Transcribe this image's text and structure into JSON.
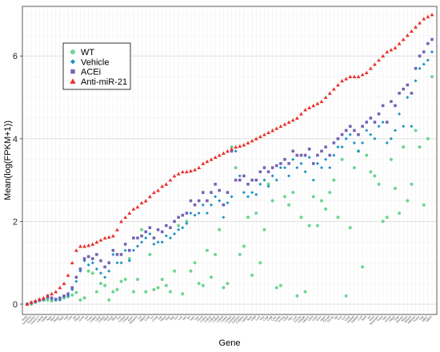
{
  "chart_data": {
    "type": "scatter",
    "xlabel": "Gene",
    "ylabel": "Mean(log(FPKM+1))",
    "ylim": [
      -0.25,
      7.2
    ],
    "y_ticks": [
      0,
      2,
      4,
      6
    ],
    "grid": true,
    "legend_position": "top-left",
    "genes": [
      "Rnd3",
      "Gm10561",
      "Tmem37",
      "Tmem177",
      "Ankrd1",
      "Cd200",
      "Nppa",
      "Myh7",
      "Pla2g7",
      "Rgs2",
      "Ctgf",
      "Ly6a",
      "Zfp",
      "Thbs1",
      "Cyr61",
      "Vim",
      "Postn",
      "Col8a1",
      "Ltbp2",
      "Col3a1",
      "Fbln2",
      "Timp1",
      "Sfrp2",
      "Fn1",
      "Col1a2",
      "Col1a1",
      "Sparc",
      "Serpinh1",
      "Lox",
      "Mfap5",
      "Loxl1",
      "Tnc",
      "Comp",
      "Cilp",
      "Thbs4",
      "Fstl1",
      "Mgp",
      "Dcn",
      "Lum",
      "Bgn",
      "Eln",
      "Aspn",
      "Ogn",
      "Fmod",
      "Col5a1",
      "Col5a2",
      "Col6a1",
      "Col6a2",
      "Col6a3",
      "Col4a1",
      "Col4a2",
      "Col14a1",
      "Col15a1",
      "Col16a1",
      "Lgals3",
      "Spp1",
      "Cd68",
      "Lyz2",
      "Ctss",
      "C1qa",
      "C1qb",
      "C1qc",
      "Tyrobp",
      "Fcer1g",
      "Cd52",
      "Ptprc",
      "Lcp1",
      "Coro1a",
      "Arhgdib",
      "Laptm5",
      "Cd53",
      "Cd14",
      "Emr1",
      "Itgam",
      "Clec4d",
      "Clec4e",
      "Il1b",
      "Ccl2",
      "Ccl7",
      "Cxcl1",
      "S100a8",
      "S100a9",
      "Lcn2",
      "Saa3",
      "Hp",
      "Orm1",
      "Serpina3n",
      "Timp2",
      "Nid1",
      "Lama4",
      "Hspg2",
      "Pxdn",
      "Efemp1",
      "Mmp2",
      "Mmp14",
      "Adamts2",
      "Pcolce",
      "Ctsk",
      "Igfbp7",
      "Igfbp5"
    ],
    "series": [
      {
        "name": "WT",
        "color": "#6cd591",
        "marker": "circle",
        "values": [
          0,
          0,
          0.05,
          0.08,
          0.1,
          0.1,
          0.08,
          0.1,
          0.12,
          0.15,
          0.18,
          0.22,
          0.28,
          0.1,
          0.15,
          0.8,
          0.75,
          0.3,
          0.5,
          0.45,
          0.1,
          0.3,
          0.35,
          0.55,
          0.6,
          1.1,
          0.3,
          0.6,
          1.8,
          0.3,
          1.2,
          0.35,
          0.4,
          0.6,
          0.45,
          0.3,
          0.8,
          1.9,
          0.25,
          2.0,
          0.8,
          1.0,
          0.5,
          0.45,
          1.3,
          0.65,
          1.2,
          1.8,
          0.4,
          0.5,
          3.8,
          3.3,
          1.2,
          1.4,
          2.1,
          0.7,
          2.2,
          1.0,
          1.8,
          2.9,
          2.5,
          0.4,
          0.45,
          2.6,
          2.4,
          2.7,
          0.2,
          2.1,
          0.3,
          1.9,
          2.6,
          1.9,
          2.5,
          2.3,
          2.7,
          3.0,
          2.1,
          3.5,
          0.2,
          1.85,
          3.3,
          3.7,
          0.9,
          3.6,
          3.2,
          3.1,
          2.9,
          2.0,
          2.1,
          3.5,
          2.8,
          2.2,
          3.8,
          2.5,
          2.9,
          4.2,
          3.8,
          2.4,
          4.0,
          5.5
        ]
      },
      {
        "name": "Vehicle",
        "color": "#1a8fc4",
        "marker": "diamond",
        "values": [
          0,
          0.02,
          0.05,
          0.1,
          0.1,
          0.15,
          0.12,
          0.1,
          0.1,
          0.18,
          0.2,
          0.35,
          0.55,
          0.8,
          1.05,
          0.95,
          1.0,
          0.85,
          0.75,
          0.65,
          0.8,
          1.2,
          1.0,
          1.0,
          1.3,
          1.05,
          1.3,
          1.4,
          1.5,
          1.6,
          1.7,
          1.45,
          1.5,
          1.5,
          1.65,
          1.6,
          1.7,
          1.8,
          1.85,
          1.95,
          2.2,
          2.15,
          2.2,
          2.4,
          2.2,
          2.4,
          2.6,
          2.5,
          2.1,
          2.45,
          2.6,
          3.7,
          3.1,
          2.7,
          2.6,
          2.7,
          2.65,
          2.9,
          3.0,
          2.85,
          3.1,
          3.0,
          3.3,
          3.3,
          3.1,
          3.5,
          3.3,
          3.4,
          3.2,
          3.55,
          3.0,
          3.4,
          3.3,
          3.5,
          3.3,
          3.6,
          3.8,
          3.8,
          4.0,
          4.1,
          3.9,
          3.7,
          3.9,
          4.2,
          4.1,
          4.0,
          4.3,
          4.4,
          3.9,
          4.0,
          4.2,
          4.6,
          4.3,
          5.0,
          4.3,
          5.4,
          5.7,
          5.8,
          5.9,
          6.1
        ]
      },
      {
        "name": "ACEi",
        "color": "#7464b4",
        "marker": "square",
        "values": [
          0,
          0.03,
          0.06,
          0.1,
          0.12,
          0.2,
          0.15,
          0.12,
          0.15,
          0.2,
          0.25,
          0.4,
          0.65,
          0.85,
          1.1,
          1.15,
          1.1,
          1.2,
          1.05,
          0.9,
          1.0,
          1.3,
          1.2,
          1.2,
          1.45,
          1.3,
          1.6,
          1.6,
          1.65,
          1.75,
          1.85,
          1.6,
          1.8,
          1.75,
          1.9,
          1.85,
          2.0,
          2.1,
          2.15,
          2.2,
          2.5,
          2.4,
          2.5,
          2.7,
          2.5,
          2.7,
          2.9,
          2.75,
          2.4,
          2.7,
          3.7,
          3.0,
          3.0,
          3.1,
          2.9,
          3.0,
          3.0,
          3.2,
          3.3,
          3.2,
          3.3,
          3.35,
          3.4,
          3.5,
          3.4,
          3.7,
          3.6,
          3.6,
          3.6,
          3.75,
          3.4,
          3.6,
          3.7,
          3.8,
          3.6,
          3.9,
          4.0,
          4.1,
          4.2,
          4.3,
          4.2,
          4.1,
          4.3,
          4.4,
          4.5,
          4.4,
          4.6,
          4.8,
          4.4,
          4.9,
          4.8,
          5.1,
          5.2,
          5.3,
          5.1,
          5.7,
          6.0,
          6.1,
          6.3,
          6.4
        ]
      },
      {
        "name": "Anti-miR-21",
        "color": "#e8312a",
        "marker": "triangle",
        "values": [
          0,
          0.05,
          0.08,
          0.12,
          0.15,
          0.2,
          0.25,
          0.3,
          0.4,
          0.5,
          0.7,
          1.0,
          1.3,
          1.4,
          1.4,
          1.42,
          1.45,
          1.5,
          1.55,
          1.6,
          1.62,
          1.65,
          1.8,
          2.0,
          2.1,
          2.2,
          2.3,
          2.35,
          2.45,
          2.5,
          2.6,
          2.7,
          2.75,
          2.85,
          2.9,
          3.0,
          3.1,
          3.15,
          3.2,
          3.2,
          3.22,
          3.25,
          3.3,
          3.4,
          3.45,
          3.5,
          3.55,
          3.6,
          3.65,
          3.7,
          3.75,
          3.8,
          3.82,
          3.85,
          3.9,
          3.95,
          4.0,
          4.05,
          4.1,
          4.15,
          4.2,
          4.25,
          4.3,
          4.35,
          4.4,
          4.45,
          4.5,
          4.6,
          4.7,
          4.75,
          4.8,
          4.85,
          4.9,
          5.0,
          5.1,
          5.2,
          5.3,
          5.4,
          5.45,
          5.5,
          5.5,
          5.5,
          5.55,
          5.6,
          5.7,
          5.8,
          5.9,
          6.0,
          6.1,
          6.15,
          6.2,
          6.3,
          6.4,
          6.5,
          6.6,
          6.7,
          6.8,
          6.9,
          6.95,
          7.0
        ]
      }
    ]
  }
}
